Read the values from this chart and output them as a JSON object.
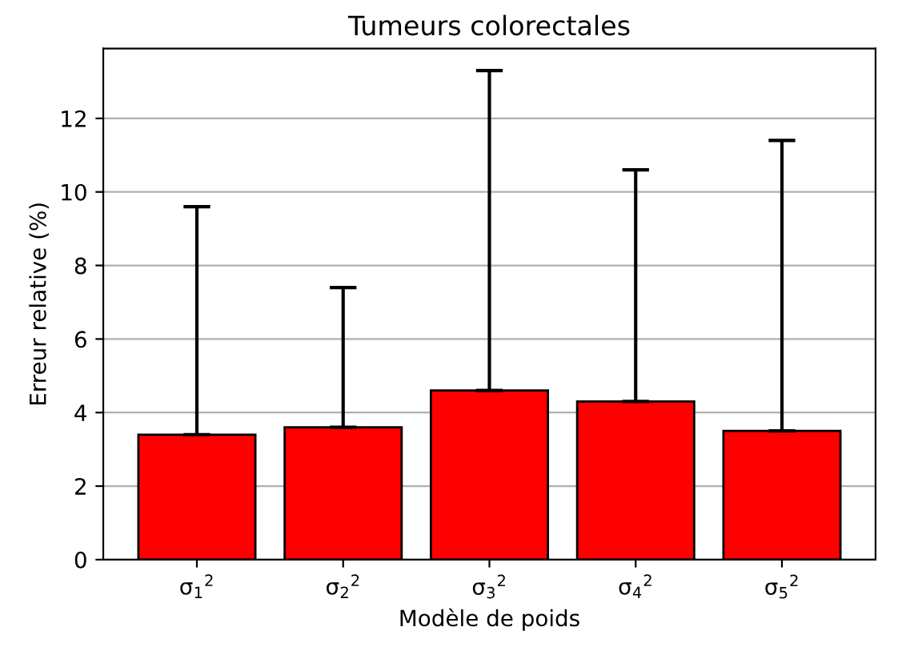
{
  "chart_data": {
    "type": "bar",
    "title": "Tumeurs colorectales",
    "xlabel": "Modèle de poids",
    "ylabel": "Erreur relative (%)",
    "categories": [
      "σ$_{1}$$^{2}$",
      "σ$_{2}$$^{2}$",
      "σ$_{3}$$^{2}$",
      "σ$_{4}$$^{2}$",
      "σ$_{5}$$^{2}$"
    ],
    "values": [
      3.4,
      3.6,
      4.6,
      4.3,
      3.5
    ],
    "errors": [
      [
        3.4,
        9.6
      ],
      [
        3.6,
        7.4
      ],
      [
        4.6,
        13.3
      ],
      [
        4.3,
        10.6
      ],
      [
        3.5,
        11.4
      ]
    ],
    "color": "#ff0000",
    "ylim": [
      0,
      13.9
    ],
    "yticks": [
      0,
      2,
      4,
      6,
      8,
      10,
      12
    ],
    "grid": "y"
  }
}
